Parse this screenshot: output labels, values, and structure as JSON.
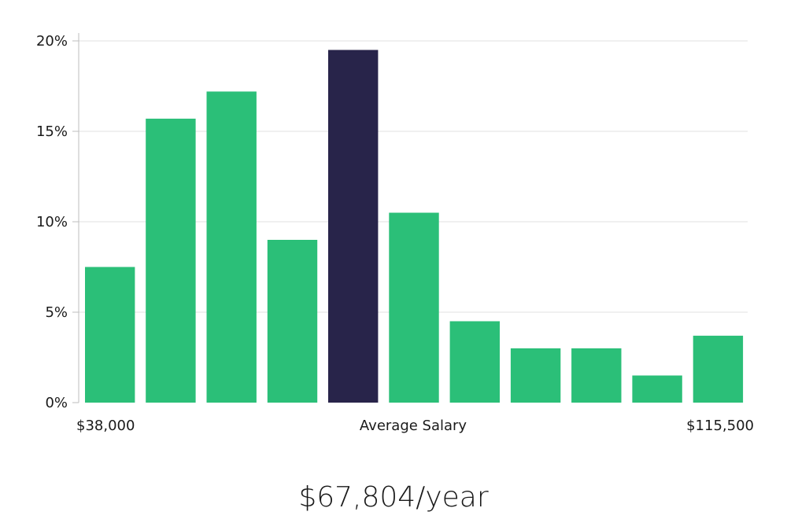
{
  "colors": {
    "bar": "#2bbf78",
    "highlight_bar": "#28244a",
    "grid": "#e0e0e0",
    "text": "#1a1a1a"
  },
  "salary_figure": "$67,804/year",
  "chart_data": {
    "type": "bar",
    "categories": [
      "1",
      "2",
      "3",
      "4",
      "5",
      "6",
      "7",
      "8",
      "9",
      "10",
      "11"
    ],
    "values": [
      7.5,
      15.7,
      17.2,
      9.0,
      19.5,
      10.5,
      4.5,
      3.0,
      3.0,
      1.5,
      3.7
    ],
    "highlight_index": 4,
    "ylim": [
      0,
      20
    ],
    "yticks": [
      {
        "value": 0,
        "label": "0%"
      },
      {
        "value": 5,
        "label": "5%"
      },
      {
        "value": 10,
        "label": "10%"
      },
      {
        "value": 15,
        "label": "15%"
      },
      {
        "value": 20,
        "label": "20%"
      }
    ],
    "x_labels": {
      "min": "$38,000",
      "center": "Average Salary",
      "max": "$115,500"
    },
    "grid": true,
    "legend": "none"
  }
}
